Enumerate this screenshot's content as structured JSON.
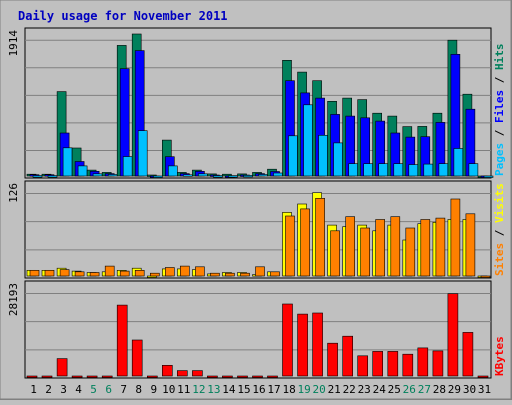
{
  "chart_data": {
    "title": "Daily usage for November 2011",
    "days": [
      "1",
      "2",
      "3",
      "4",
      "5",
      "6",
      "7",
      "8",
      "9",
      "10",
      "11",
      "12",
      "13",
      "14",
      "15",
      "16",
      "17",
      "18",
      "19",
      "20",
      "21",
      "22",
      "23",
      "24",
      "25",
      "26",
      "27",
      "28",
      "29",
      "30",
      "31"
    ],
    "weekend_days": [
      "5",
      "6",
      "12",
      "13",
      "19",
      "20",
      "26",
      "27"
    ],
    "colors": {
      "hits": "#00805c",
      "files": "#0000ff",
      "pages": "#00c0ff",
      "visits": "#ffff00",
      "sites": "#ff8000",
      "kbytes": "#ff0000",
      "title": "#0000c0",
      "weekend": "#00805c",
      "weekday": "#000000"
    },
    "panels": [
      {
        "type": "bar",
        "ylabel": "1914",
        "ymax": 1914,
        "legend": [
          {
            "label": "Pages",
            "color": "#00c0ff"
          },
          {
            "label": "Files",
            "color": "#0000ff"
          },
          {
            "label": "Hits",
            "color": "#00805c"
          }
        ],
        "series": [
          {
            "name": "Hits",
            "values": [
              24,
              24,
              1137,
              377,
              80,
              48,
              1760,
              1914,
              14,
              484,
              48,
              80,
              28,
              24,
              28,
              48,
              92,
              1560,
              1400,
              1285,
              1007,
              1050,
              1030,
              846,
              808,
              666,
              668,
              846,
              1830,
              1103,
              0
            ]
          },
          {
            "name": "Files",
            "values": [
              18,
              18,
              580,
              196,
              64,
              32,
              1446,
              1690,
              0,
              260,
              32,
              64,
              14,
              0,
              14,
              32,
              60,
              1285,
              1120,
              1050,
              830,
              808,
              785,
              740,
              580,
              524,
              530,
              722,
              1640,
              900,
              0
            ]
          },
          {
            "name": "Pages",
            "values": [
              5,
              5,
              380,
              136,
              30,
              20,
              262,
              610,
              0,
              136,
              16,
              30,
              5,
              5,
              8,
              20,
              40,
              542,
              960,
              548,
              446,
              166,
              166,
              166,
              166,
              154,
              160,
              166,
              370,
              166,
              0
            ]
          }
        ]
      },
      {
        "type": "bar",
        "ylabel": "126",
        "ymax": 126,
        "legend": [
          {
            "label": "Sites",
            "color": "#ff8000"
          },
          {
            "label": "Visits",
            "color": "#ffff00"
          }
        ],
        "series": [
          {
            "name": "Visits",
            "values": [
              8,
              8,
              11,
              7,
              5,
              6,
              8,
              11,
              0,
              10,
              10,
              9,
              3,
              5,
              5,
              2,
              6,
              90,
              102,
              118,
              72,
              70,
              72,
              64,
              72,
              51,
              74,
              76,
              80,
              80,
              0
            ]
          },
          {
            "name": "Sites",
            "values": [
              8,
              8,
              9,
              6,
              5,
              14,
              7,
              8,
              4,
              12,
              14,
              13,
              4,
              4,
              4,
              13,
              6,
              85,
              95,
              110,
              64,
              84,
              68,
              80,
              84,
              68,
              80,
              82,
              109,
              88,
              0
            ]
          }
        ]
      },
      {
        "type": "bar",
        "ylabel": "28193",
        "ymax": 28193,
        "legend": [
          {
            "label": "KBytes",
            "color": "#ff0000"
          }
        ],
        "series": [
          {
            "name": "KBytes",
            "values": [
              0,
              0,
              5500,
              0,
              0,
              0,
              22460,
              11400,
              0,
              3400,
              1700,
              1700,
              0,
              0,
              0,
              0,
              0,
              22800,
              19600,
              19950,
              10400,
              12600,
              6400,
              7800,
              7800,
              6900,
              8900,
              7950,
              26080,
              13800,
              0
            ]
          }
        ]
      }
    ]
  }
}
